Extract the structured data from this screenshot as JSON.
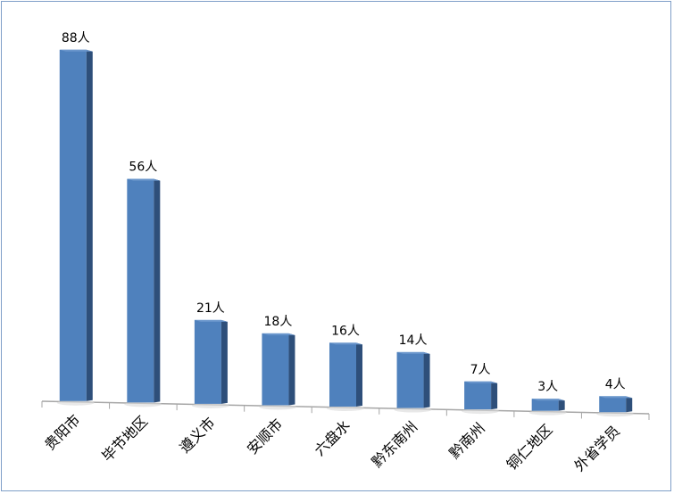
{
  "chart_data": {
    "type": "bar",
    "style": "3d-column",
    "categories": [
      "贵阳市",
      "毕节地区",
      "遵义市",
      "安顺市",
      "六盘水",
      "黔东南州",
      "黔南州",
      "铜仁地区",
      "外省学员"
    ],
    "values": [
      88,
      56,
      21,
      18,
      16,
      14,
      7,
      3,
      4
    ],
    "data_labels": [
      "88人",
      "56人",
      "21人",
      "18人",
      "16人",
      "14人",
      "7人",
      "3人",
      "4人"
    ],
    "title": "",
    "xlabel": "",
    "ylabel": "",
    "ylim": [
      0,
      88
    ],
    "grid": false,
    "legend": "none",
    "colors": {
      "front": "#4f81bd",
      "side": "#2e4f7a",
      "top": "#6a96cc",
      "border": "#7f9fc8",
      "axis": "#a6a6a6"
    }
  }
}
